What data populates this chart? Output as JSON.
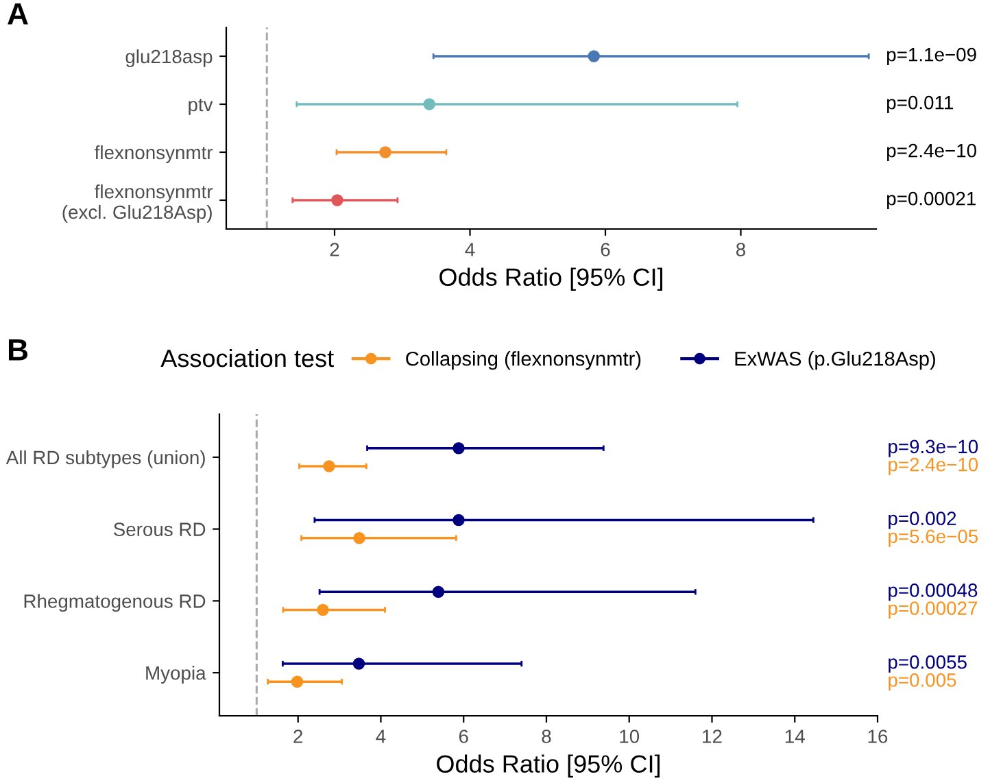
{
  "chart_data": [
    {
      "type": "scatter",
      "orientation": "horizontal",
      "title": "A",
      "xlabel": "Odds Ratio [95% CI]",
      "categories": [
        "glu218asp",
        "ptv",
        "flexnonsynmtr",
        "flexnonsynmtr\n(excl. Glu218Asp)"
      ],
      "series": [
        {
          "values": [
            5.83,
            3.4,
            2.75,
            2.04
          ],
          "colors": [
            "#4a78b5",
            "#72bcbc",
            "#f28e2b",
            "#e15759"
          ],
          "errors": [
            [
              3.46,
              9.89
            ],
            [
              1.44,
              7.95
            ],
            [
              2.03,
              3.65
            ],
            [
              1.38,
              2.93
            ]
          ]
        }
      ],
      "annotations": [
        "p=1.1e−09",
        "p=0.011",
        "p=2.4e−10",
        "p=0.00021"
      ],
      "xlim": [
        0.4,
        10.0
      ],
      "xticks": [
        2,
        4,
        6,
        8
      ],
      "marker": "circle",
      "grid": false,
      "legend": false,
      "ref_lines": [
        {
          "axis": "x",
          "value": 1,
          "color": "#aaaaaa",
          "line_style": "dashed"
        }
      ]
    },
    {
      "type": "scatter",
      "orientation": "horizontal",
      "title": "B",
      "xlabel": "Odds Ratio [95% CI]",
      "legend_title": "Association test",
      "categories": [
        "All RD subtypes (union)",
        "Serous RD",
        "Rhegmatogenous RD",
        "Myopia"
      ],
      "series": [
        {
          "name": "Collapsing (flexnonsynmtr)",
          "color": "#f7931e",
          "values": [
            2.75,
            3.48,
            2.6,
            1.98
          ],
          "errors": [
            [
              2.03,
              3.65
            ],
            [
              2.08,
              5.82
            ],
            [
              1.64,
              4.1
            ],
            [
              1.27,
              3.06
            ]
          ]
        },
        {
          "name": "ExWAS (p.Glu218Asp)",
          "color": "#00007f",
          "values": [
            5.88,
            5.88,
            5.39,
            3.47
          ],
          "errors": [
            [
              3.67,
              9.38
            ],
            [
              2.4,
              14.45
            ],
            [
              2.52,
              11.6
            ],
            [
              1.63,
              7.4
            ]
          ]
        }
      ],
      "annotations": [
        "p=2.4e−10",
        "p=9.3e−10",
        "p=5.6e−05",
        "p=0.002",
        "p=0.00027",
        "p=0.00048",
        "p=0.005",
        "p=0.0055"
      ],
      "xlim": [
        0.1,
        16
      ],
      "xticks": [
        2,
        4,
        6,
        8,
        10,
        12,
        14,
        16
      ],
      "marker": "circle",
      "grid": false,
      "legend": "top",
      "ref_lines": [
        {
          "axis": "x",
          "value": 1,
          "color": "#aaaaaa",
          "line_style": "dashed"
        }
      ]
    }
  ]
}
